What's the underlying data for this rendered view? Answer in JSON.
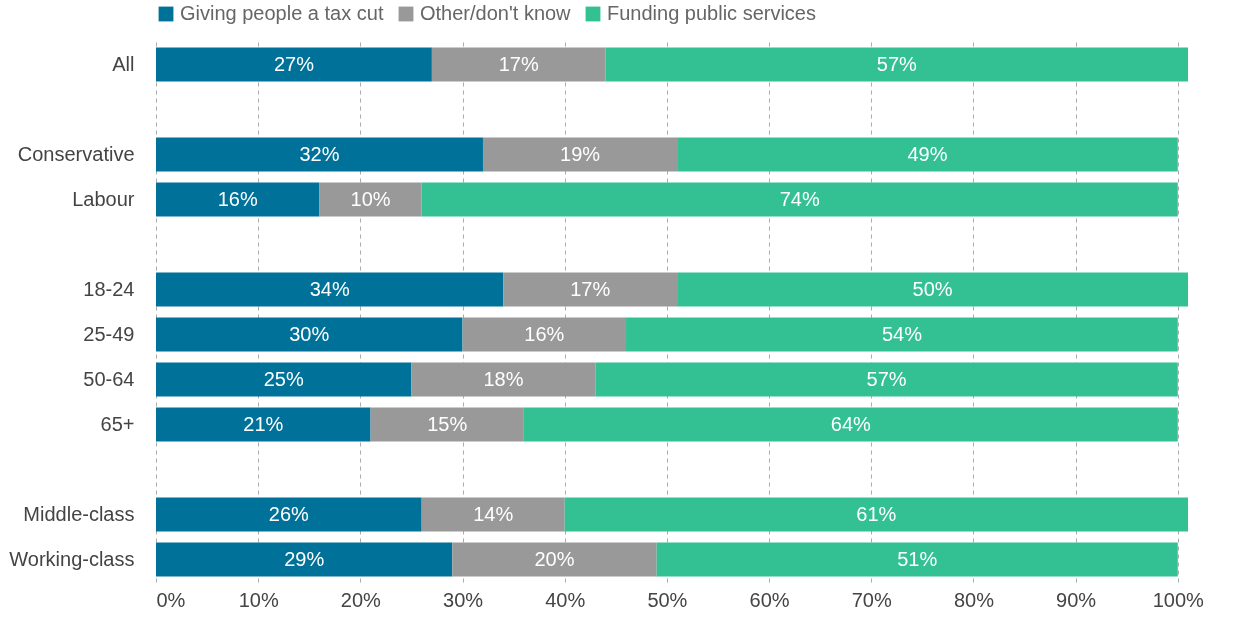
{
  "chart_data": {
    "type": "bar",
    "orientation": "horizontal",
    "stacked": true,
    "categories": [
      "All",
      null,
      "Conservative",
      "Labour",
      null,
      "18-24",
      "25-49",
      "50-64",
      "65+",
      null,
      "Middle-class",
      "Working-class"
    ],
    "series": [
      {
        "name": "Giving people a tax cut",
        "color": "#00729a",
        "values": [
          27,
          null,
          32,
          16,
          null,
          34,
          30,
          25,
          21,
          null,
          26,
          29
        ],
        "value_labels": [
          "27%",
          null,
          "32%",
          "16%",
          null,
          "34%",
          "30%",
          "25%",
          "21%",
          null,
          "26%",
          "29%"
        ]
      },
      {
        "name": "Other/don't know",
        "color": "#999999",
        "values": [
          17,
          null,
          19,
          10,
          null,
          17,
          16,
          18,
          15,
          null,
          14,
          20
        ],
        "value_labels": [
          "17%",
          null,
          "19%",
          "10%",
          null,
          "17%",
          "16%",
          "18%",
          "15%",
          null,
          "14%",
          "20%"
        ]
      },
      {
        "name": "Funding public services",
        "color": "#33c193",
        "values": [
          57,
          null,
          49,
          74,
          null,
          50,
          54,
          57,
          64,
          null,
          61,
          51
        ],
        "value_labels": [
          "57%",
          null,
          "49%",
          "74%",
          null,
          "50%",
          "54%",
          "57%",
          "64%",
          null,
          "61%",
          "51%"
        ]
      }
    ],
    "xlim": [
      0,
      101
    ],
    "xticks": [
      {
        "value": 0,
        "label": "0%"
      },
      {
        "value": 10,
        "label": "10%"
      },
      {
        "value": 20,
        "label": "20%"
      },
      {
        "value": 30,
        "label": "30%"
      },
      {
        "value": 40,
        "label": "40%"
      },
      {
        "value": 50,
        "label": "50%"
      },
      {
        "value": 60,
        "label": "60%"
      },
      {
        "value": 70,
        "label": "70%"
      },
      {
        "value": 80,
        "label": "80%"
      },
      {
        "value": 90,
        "label": "90%"
      },
      {
        "value": 100,
        "label": "100%"
      }
    ],
    "grid": "x",
    "legend": "top"
  }
}
